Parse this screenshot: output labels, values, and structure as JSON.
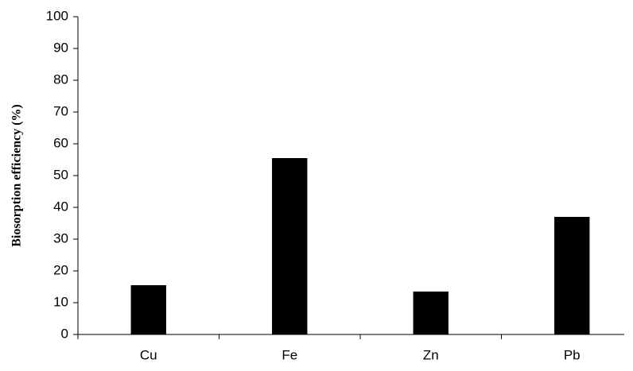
{
  "chart_data": {
    "type": "bar",
    "y_label": "Biosorption efficiency (%)",
    "categories": [
      "Cu",
      "Fe",
      "Zn",
      "Pb"
    ],
    "values": [
      15.5,
      55.5,
      13.5,
      37
    ],
    "color": "#000000",
    "ylim": [
      0,
      100
    ],
    "yticks": [
      0,
      10,
      20,
      30,
      40,
      50,
      60,
      70,
      80,
      90,
      100
    ],
    "grid": false
  }
}
